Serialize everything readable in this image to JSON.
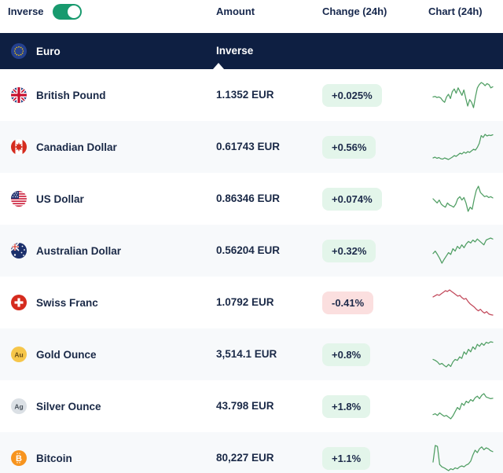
{
  "topbar": {
    "inverse_label": "Inverse",
    "toggle_on": true,
    "columns": {
      "amount": "Amount",
      "change": "Change (24h)",
      "chart": "Chart (24h)"
    }
  },
  "base": {
    "name": "Euro",
    "amount_label": "Inverse",
    "flag": "eu",
    "icon": "eu-flag-icon"
  },
  "rows": [
    {
      "name": "British Pound",
      "amount": "1.1352 EUR",
      "change": "+0.025%",
      "trend": "up",
      "flag": "uk",
      "icon": "uk-flag-icon",
      "spark": [
        45,
        46,
        44,
        45,
        43,
        38,
        35,
        45,
        50,
        42,
        55,
        60,
        52,
        62,
        55,
        48,
        58,
        42,
        28,
        40,
        35,
        25,
        45,
        62,
        68,
        72,
        70,
        66,
        70,
        68,
        62,
        64
      ]
    },
    {
      "name": "Canadian Dollar",
      "amount": "0.61743 EUR",
      "change": "+0.56%",
      "trend": "up",
      "flag": "ca",
      "icon": "canada-flag-icon",
      "spark": [
        18,
        20,
        17,
        19,
        16,
        15,
        18,
        16,
        14,
        17,
        20,
        24,
        22,
        26,
        30,
        28,
        33,
        30,
        34,
        32,
        36,
        40,
        38,
        45,
        55,
        75,
        70,
        78,
        74,
        76,
        75,
        77
      ]
    },
    {
      "name": "US Dollar",
      "amount": "0.86346 EUR",
      "change": "+0.074%",
      "trend": "up",
      "flag": "us",
      "icon": "us-flag-icon",
      "spark": [
        55,
        50,
        45,
        52,
        42,
        38,
        35,
        45,
        40,
        38,
        35,
        42,
        55,
        60,
        52,
        58,
        45,
        25,
        35,
        30,
        55,
        75,
        85,
        70,
        65,
        60,
        62,
        58,
        60,
        57
      ]
    },
    {
      "name": "Australian Dollar",
      "amount": "0.56204 EUR",
      "change": "+0.32%",
      "trend": "up",
      "flag": "au",
      "icon": "australia-flag-icon",
      "spark": [
        40,
        45,
        38,
        30,
        20,
        28,
        35,
        42,
        38,
        50,
        45,
        55,
        50,
        58,
        52,
        60,
        65,
        62,
        68,
        64,
        70,
        66,
        62,
        58,
        68,
        70,
        72,
        70
      ]
    },
    {
      "name": "Swiss Franc",
      "amount": "1.0792 EUR",
      "change": "-0.41%",
      "trend": "down",
      "flag": "ch",
      "icon": "switzerland-flag-icon",
      "spark": [
        62,
        65,
        68,
        66,
        70,
        74,
        78,
        76,
        80,
        76,
        72,
        68,
        64,
        66,
        60,
        56,
        58,
        50,
        44,
        40,
        36,
        30,
        26,
        30,
        24,
        20,
        24,
        18,
        16,
        15
      ]
    },
    {
      "name": "Gold Ounce",
      "amount": "3,514.1 EUR",
      "change": "+0.8%",
      "trend": "up",
      "flag": "gold",
      "icon": "gold-icon",
      "spark": [
        40,
        38,
        35,
        30,
        32,
        28,
        25,
        30,
        26,
        35,
        40,
        38,
        45,
        42,
        55,
        50,
        60,
        55,
        65,
        60,
        70,
        66,
        72,
        68,
        74,
        72,
        75,
        74
      ]
    },
    {
      "name": "Silver Ounce",
      "amount": "43.798 EUR",
      "change": "+1.8%",
      "trend": "up",
      "flag": "silver",
      "icon": "silver-icon",
      "spark": [
        28,
        30,
        26,
        32,
        28,
        24,
        26,
        22,
        18,
        25,
        35,
        45,
        40,
        55,
        50,
        60,
        56,
        64,
        60,
        68,
        72,
        66,
        74,
        78,
        70,
        68,
        66,
        67
      ]
    },
    {
      "name": "Bitcoin",
      "amount": "80,227 EUR",
      "change": "+1.1%",
      "trend": "up",
      "flag": "btc",
      "icon": "bitcoin-icon",
      "spark": [
        40,
        75,
        73,
        35,
        30,
        28,
        25,
        22,
        26,
        24,
        28,
        26,
        30,
        32,
        30,
        34,
        36,
        42,
        55,
        65,
        60,
        68,
        72,
        66,
        70,
        68,
        64,
        62
      ]
    }
  ],
  "colors": {
    "dark_navy": "#0e1f42",
    "toggle_green": "#189a6e",
    "spark_up": "#4f9e63",
    "spark_down": "#c2485a",
    "badge_up_bg": "#e3f5ea",
    "badge_down_bg": "#fbdfdf",
    "alt_row_bg": "#f7f9fb"
  }
}
